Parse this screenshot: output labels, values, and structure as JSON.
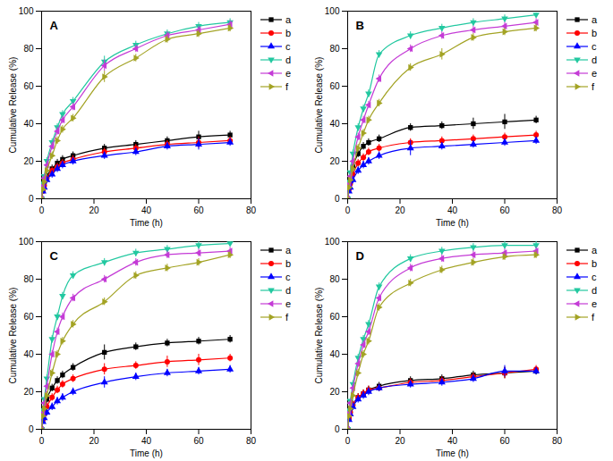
{
  "chart_data": [
    {
      "type": "line",
      "title": "A",
      "x_label": "Time (h)",
      "y_label": "Cumulative Release (%)",
      "x": [
        0,
        0.5,
        1,
        2,
        4,
        6,
        8,
        12,
        24,
        36,
        48,
        60,
        72
      ],
      "xlim": [
        0,
        80
      ],
      "xticks": [
        0,
        20,
        40,
        60,
        80
      ],
      "ylim": [
        0,
        100
      ],
      "yticks": [
        0,
        20,
        40,
        60,
        80,
        100
      ],
      "legend": "right",
      "series": [
        {
          "name": "a",
          "color": "#000000",
          "marker": "square",
          "values": [
            0,
            5,
            8,
            12,
            16,
            19,
            21,
            23,
            27,
            29,
            31,
            33,
            34
          ],
          "errors": [
            0,
            1,
            1,
            2,
            2,
            2,
            2,
            2,
            2,
            2,
            2,
            3,
            2
          ]
        },
        {
          "name": "b",
          "color": "#ff0000",
          "marker": "circle",
          "values": [
            0,
            4,
            7,
            11,
            15,
            17,
            19,
            21,
            25,
            27,
            29,
            30,
            31
          ],
          "errors": [
            0,
            1,
            1,
            2,
            2,
            2,
            2,
            2,
            2,
            2,
            2,
            3,
            2
          ]
        },
        {
          "name": "c",
          "color": "#0000ff",
          "marker": "triangle",
          "values": [
            0,
            4,
            6,
            10,
            13,
            16,
            18,
            20,
            23,
            25,
            28,
            29,
            30
          ],
          "errors": [
            0,
            1,
            1,
            2,
            2,
            2,
            2,
            2,
            2,
            2,
            2,
            3,
            2
          ]
        },
        {
          "name": "d",
          "color": "#22c8a0",
          "marker": "triangle-down",
          "values": [
            0,
            8,
            12,
            20,
            30,
            38,
            45,
            52,
            73,
            82,
            88,
            92,
            94
          ],
          "errors": [
            0,
            1,
            1,
            2,
            2,
            2,
            2,
            2,
            3,
            2,
            2,
            2,
            2
          ]
        },
        {
          "name": "e",
          "color": "#c43bd6",
          "marker": "triangle-left",
          "values": [
            0,
            7,
            11,
            18,
            28,
            36,
            42,
            49,
            71,
            80,
            87,
            90,
            93
          ],
          "errors": [
            0,
            1,
            1,
            2,
            2,
            2,
            2,
            2,
            3,
            2,
            2,
            2,
            2
          ]
        },
        {
          "name": "f",
          "color": "#a3a324",
          "marker": "triangle-right",
          "values": [
            0,
            5,
            9,
            15,
            23,
            31,
            37,
            43,
            65,
            75,
            85,
            88,
            91
          ],
          "errors": [
            0,
            1,
            1,
            2,
            2,
            2,
            2,
            2,
            3,
            2,
            2,
            2,
            2
          ]
        }
      ]
    },
    {
      "type": "line",
      "title": "B",
      "x_label": "Time (h)",
      "y_label": "Cumulative Release (%)",
      "x": [
        0,
        0.5,
        1,
        2,
        4,
        6,
        8,
        12,
        24,
        36,
        48,
        60,
        72
      ],
      "xlim": [
        0,
        80
      ],
      "xticks": [
        0,
        20,
        40,
        60,
        80
      ],
      "ylim": [
        0,
        100
      ],
      "yticks": [
        0,
        20,
        40,
        60,
        80,
        100
      ],
      "legend": "right",
      "series": [
        {
          "name": "a",
          "color": "#000000",
          "marker": "square",
          "values": [
            0,
            6,
            10,
            17,
            24,
            28,
            30,
            32,
            38,
            39,
            40,
            41,
            42
          ],
          "errors": [
            0,
            1,
            1,
            2,
            2,
            2,
            2,
            2,
            2,
            2,
            3,
            4,
            2
          ]
        },
        {
          "name": "b",
          "color": "#ff0000",
          "marker": "circle",
          "values": [
            0,
            5,
            8,
            13,
            19,
            22,
            25,
            27,
            30,
            31,
            32,
            33,
            34
          ],
          "errors": [
            0,
            1,
            1,
            2,
            2,
            2,
            2,
            2,
            2,
            2,
            2,
            2,
            2
          ]
        },
        {
          "name": "c",
          "color": "#0000ff",
          "marker": "triangle",
          "values": [
            0,
            4,
            6,
            10,
            15,
            18,
            20,
            23,
            27,
            28,
            29,
            30,
            31
          ],
          "errors": [
            0,
            1,
            1,
            2,
            2,
            2,
            2,
            2,
            4,
            2,
            2,
            2,
            2
          ]
        },
        {
          "name": "d",
          "color": "#22c8a0",
          "marker": "triangle-down",
          "values": [
            0,
            9,
            14,
            24,
            38,
            48,
            56,
            77,
            87,
            91,
            94,
            96,
            98
          ],
          "errors": [
            0,
            1,
            1,
            2,
            2,
            2,
            2,
            2,
            2,
            2,
            2,
            2,
            1
          ]
        },
        {
          "name": "e",
          "color": "#c43bd6",
          "marker": "triangle-left",
          "values": [
            0,
            8,
            12,
            20,
            33,
            42,
            50,
            64,
            80,
            87,
            90,
            92,
            94
          ],
          "errors": [
            0,
            1,
            1,
            2,
            2,
            2,
            2,
            2,
            2,
            2,
            2,
            2,
            2
          ]
        },
        {
          "name": "f",
          "color": "#a3a324",
          "marker": "triangle-right",
          "values": [
            0,
            6,
            10,
            16,
            27,
            35,
            42,
            51,
            70,
            77,
            86,
            89,
            91
          ],
          "errors": [
            0,
            1,
            1,
            2,
            2,
            2,
            2,
            2,
            2,
            3,
            2,
            2,
            2
          ]
        }
      ]
    },
    {
      "type": "line",
      "title": "C",
      "x_label": "Time (h)",
      "y_label": "Cumulative Release (%)",
      "x": [
        0,
        0.5,
        1,
        2,
        4,
        6,
        8,
        12,
        24,
        36,
        48,
        60,
        72
      ],
      "xlim": [
        0,
        80
      ],
      "xticks": [
        0,
        20,
        40,
        60,
        80
      ],
      "ylim": [
        0,
        100
      ],
      "yticks": [
        0,
        20,
        40,
        60,
        80,
        100
      ],
      "legend": "right",
      "series": [
        {
          "name": "a",
          "color": "#000000",
          "marker": "square",
          "values": [
            0,
            6,
            10,
            16,
            22,
            26,
            29,
            33,
            41,
            44,
            46,
            47,
            48
          ],
          "errors": [
            0,
            1,
            1,
            2,
            2,
            2,
            2,
            2,
            4,
            2,
            2,
            2,
            2
          ]
        },
        {
          "name": "b",
          "color": "#ff0000",
          "marker": "circle",
          "values": [
            0,
            5,
            8,
            12,
            17,
            21,
            24,
            27,
            32,
            34,
            36,
            37,
            38
          ],
          "errors": [
            0,
            1,
            1,
            2,
            2,
            2,
            2,
            2,
            3,
            2,
            3,
            3,
            2
          ]
        },
        {
          "name": "c",
          "color": "#0000ff",
          "marker": "triangle",
          "values": [
            0,
            4,
            6,
            9,
            12,
            15,
            17,
            20,
            25,
            28,
            30,
            31,
            32
          ],
          "errors": [
            0,
            1,
            1,
            2,
            2,
            2,
            2,
            2,
            3,
            2,
            2,
            2,
            2
          ]
        },
        {
          "name": "d",
          "color": "#22c8a0",
          "marker": "triangle-down",
          "values": [
            0,
            10,
            16,
            27,
            48,
            60,
            71,
            82,
            89,
            94,
            96,
            98,
            99
          ],
          "errors": [
            0,
            1,
            1,
            2,
            2,
            2,
            2,
            2,
            2,
            2,
            2,
            2,
            1
          ]
        },
        {
          "name": "e",
          "color": "#c43bd6",
          "marker": "triangle-left",
          "values": [
            0,
            9,
            14,
            23,
            40,
            52,
            60,
            70,
            80,
            89,
            93,
            94,
            95
          ],
          "errors": [
            0,
            1,
            1,
            2,
            2,
            2,
            2,
            2,
            2,
            2,
            2,
            2,
            2
          ]
        },
        {
          "name": "f",
          "color": "#a3a324",
          "marker": "triangle-right",
          "values": [
            0,
            7,
            11,
            18,
            30,
            40,
            47,
            56,
            68,
            82,
            86,
            89,
            93
          ],
          "errors": [
            0,
            1,
            1,
            2,
            2,
            2,
            2,
            2,
            2,
            2,
            2,
            2,
            2
          ]
        }
      ]
    },
    {
      "type": "line",
      "title": "D",
      "x_label": "Time (h)",
      "y_label": "Cumulative Release (%)",
      "x": [
        0,
        0.5,
        1,
        2,
        4,
        6,
        8,
        12,
        24,
        36,
        48,
        60,
        72
      ],
      "xlim": [
        0,
        80
      ],
      "xticks": [
        0,
        20,
        40,
        60,
        80
      ],
      "ylim": [
        0,
        100
      ],
      "yticks": [
        0,
        20,
        40,
        60,
        80,
        100
      ],
      "legend": "right",
      "series": [
        {
          "name": "a",
          "color": "#000000",
          "marker": "square",
          "values": [
            0,
            6,
            9,
            13,
            17,
            19,
            21,
            23,
            26,
            27,
            29,
            30,
            31
          ],
          "errors": [
            0,
            1,
            1,
            2,
            2,
            2,
            2,
            2,
            2,
            2,
            2,
            3,
            2
          ]
        },
        {
          "name": "b",
          "color": "#ff0000",
          "marker": "circle",
          "values": [
            0,
            6,
            9,
            13,
            17,
            19,
            21,
            22,
            25,
            26,
            28,
            30,
            32
          ],
          "errors": [
            0,
            1,
            1,
            2,
            2,
            2,
            2,
            2,
            2,
            2,
            2,
            3,
            2
          ]
        },
        {
          "name": "c",
          "color": "#0000ff",
          "marker": "triangle",
          "values": [
            0,
            5,
            8,
            12,
            16,
            18,
            20,
            22,
            24,
            25,
            27,
            31,
            31
          ],
          "errors": [
            0,
            1,
            1,
            2,
            2,
            2,
            2,
            2,
            2,
            2,
            2,
            3,
            2
          ]
        },
        {
          "name": "d",
          "color": "#22c8a0",
          "marker": "triangle-down",
          "values": [
            0,
            10,
            15,
            24,
            38,
            48,
            56,
            76,
            91,
            95,
            97,
            98,
            98
          ],
          "errors": [
            0,
            1,
            1,
            2,
            2,
            2,
            2,
            2,
            2,
            2,
            2,
            2,
            2
          ]
        },
        {
          "name": "e",
          "color": "#c43bd6",
          "marker": "triangle-left",
          "values": [
            0,
            9,
            14,
            22,
            35,
            45,
            52,
            70,
            86,
            91,
            93,
            94,
            95
          ],
          "errors": [
            0,
            1,
            1,
            2,
            2,
            2,
            2,
            2,
            2,
            2,
            2,
            2,
            2
          ]
        },
        {
          "name": "f",
          "color": "#a3a324",
          "marker": "triangle-right",
          "values": [
            0,
            7,
            11,
            18,
            30,
            40,
            47,
            65,
            78,
            85,
            89,
            92,
            93
          ],
          "errors": [
            0,
            1,
            1,
            2,
            2,
            2,
            2,
            2,
            2,
            2,
            2,
            2,
            2
          ]
        }
      ]
    }
  ]
}
